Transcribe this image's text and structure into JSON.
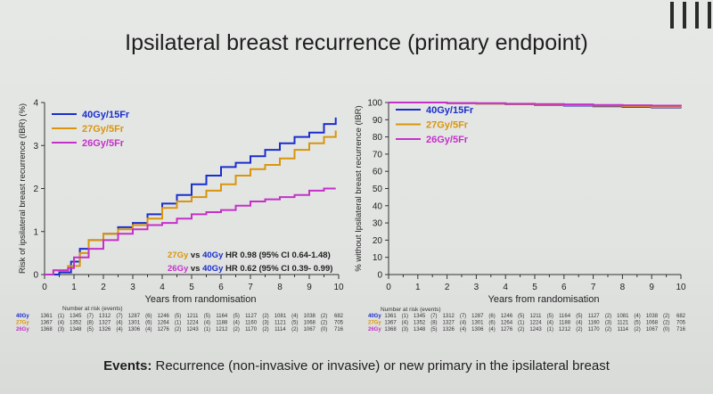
{
  "slide": {
    "title": "Ipsilateral breast recurrence (primary endpoint)",
    "footer_bold": "Events:",
    "footer_text": " Recurrence (non-invasive or invasive) or new primary in the ipsilateral breast"
  },
  "colors": {
    "40Gy": "#1a2ecc",
    "27Gy": "#d9950d",
    "26Gy": "#c431c9"
  },
  "chart_data": [
    {
      "type": "line",
      "title": "",
      "xlabel": "Years from randomisation",
      "ylabel": "Risk of ipsilateral breast recurrence (IBR) (%)",
      "xlim": [
        0,
        10
      ],
      "ylim": [
        0,
        4
      ],
      "xticks": [
        "0",
        "1",
        "2",
        "3",
        "4",
        "5",
        "6",
        "7",
        "8",
        "9",
        "10"
      ],
      "yticks": [
        "0",
        "1",
        "2",
        "3",
        "4"
      ],
      "legend_position": "top-left",
      "series": [
        {
          "name": "40Gy/15Fr",
          "color": "#1a2ecc",
          "x": [
            0,
            0.5,
            0.9,
            1.2,
            1.5,
            2.0,
            2.5,
            3.0,
            3.5,
            4.0,
            4.5,
            5.0,
            5.5,
            6.0,
            6.5,
            7.0,
            7.5,
            8.0,
            8.5,
            9.0,
            9.5,
            9.9
          ],
          "y": [
            0,
            0.05,
            0.3,
            0.6,
            0.8,
            0.95,
            1.1,
            1.2,
            1.4,
            1.65,
            1.85,
            2.1,
            2.3,
            2.5,
            2.6,
            2.75,
            2.9,
            3.05,
            3.2,
            3.3,
            3.5,
            3.65
          ]
        },
        {
          "name": "27Gy/5Fr",
          "color": "#d9950d",
          "x": [
            0,
            0.3,
            0.8,
            1.2,
            1.5,
            2.0,
            2.5,
            3.0,
            3.5,
            4.0,
            4.5,
            5.0,
            5.5,
            6.0,
            6.5,
            7.0,
            7.5,
            8.0,
            8.5,
            9.0,
            9.5,
            9.9
          ],
          "y": [
            0,
            0.1,
            0.2,
            0.5,
            0.8,
            0.95,
            1.05,
            1.15,
            1.3,
            1.55,
            1.7,
            1.8,
            1.95,
            2.1,
            2.3,
            2.45,
            2.55,
            2.7,
            2.9,
            3.05,
            3.2,
            3.35
          ]
        },
        {
          "name": "26Gy/5Fr",
          "color": "#c431c9",
          "x": [
            0,
            0.3,
            0.8,
            1.0,
            1.5,
            2.0,
            2.5,
            3.0,
            3.5,
            4.0,
            4.5,
            5.0,
            5.5,
            6.0,
            6.5,
            7.0,
            7.5,
            8.0,
            8.5,
            9.0,
            9.5,
            9.9
          ],
          "y": [
            0,
            0.1,
            0.15,
            0.4,
            0.6,
            0.8,
            0.95,
            1.05,
            1.15,
            1.2,
            1.3,
            1.4,
            1.45,
            1.5,
            1.6,
            1.7,
            1.75,
            1.8,
            1.85,
            1.95,
            2.0,
            2.0
          ]
        }
      ],
      "annotations": [
        {
          "group": "27Gy",
          "text": " vs ",
          "ref": "40Gy",
          "stats": " HR 0.98 (95% CI 0.64-1.48)"
        },
        {
          "group": "26Gy",
          "text": " vs ",
          "ref": "40Gy",
          "stats": " HR 0.62 (95% CI 0.39- 0.99)"
        }
      ],
      "risk_table": {
        "header": "Number at risk (events)",
        "rows": [
          {
            "label": "40Gy",
            "cells": [
              "1361",
              "(1)",
              "1345",
              "(7)",
              "1312",
              "(7)",
              "1287",
              "(6)",
              "1246",
              "(5)",
              "1211",
              "(5)",
              "1164",
              "(5)",
              "1127",
              "(2)",
              "1081",
              "(4)",
              "1038",
              "(2)",
              "682"
            ]
          },
          {
            "label": "27Gy",
            "cells": [
              "1367",
              "(4)",
              "1352",
              "(8)",
              "1327",
              "(4)",
              "1301",
              "(6)",
              "1264",
              "(1)",
              "1224",
              "(4)",
              "1188",
              "(4)",
              "1160",
              "(3)",
              "1121",
              "(5)",
              "1068",
              "(2)",
              "705"
            ]
          },
          {
            "label": "26Gy",
            "cells": [
              "1368",
              "(3)",
              "1348",
              "(5)",
              "1326",
              "(4)",
              "1306",
              "(4)",
              "1276",
              "(2)",
              "1243",
              "(1)",
              "1212",
              "(2)",
              "1170",
              "(2)",
              "1114",
              "(2)",
              "1067",
              "(0)",
              "716"
            ]
          }
        ]
      }
    },
    {
      "type": "line",
      "title": "",
      "xlabel": "Years from randomisation",
      "ylabel": "% without Ipsilateral breast recurrence (IBR)",
      "xlim": [
        0,
        10
      ],
      "ylim": [
        0,
        100
      ],
      "xticks": [
        "0",
        "1",
        "2",
        "3",
        "4",
        "5",
        "6",
        "7",
        "8",
        "9",
        "10"
      ],
      "yticks": [
        "0",
        "10",
        "20",
        "30",
        "40",
        "50",
        "60",
        "70",
        "80",
        "90",
        "100"
      ],
      "legend_position": "top-left",
      "series": [
        {
          "name": "40Gy/15Fr",
          "color": "#1a2ecc",
          "x": [
            0,
            2,
            3,
            4,
            5,
            6,
            7,
            8,
            9,
            10
          ],
          "y": [
            100,
            99.6,
            99.4,
            99,
            98.6,
            98.2,
            97.8,
            97.4,
            97,
            96.8
          ]
        },
        {
          "name": "27Gy/5Fr",
          "color": "#d9950d",
          "x": [
            0,
            2,
            3,
            4,
            5,
            6,
            7,
            8,
            9,
            10
          ],
          "y": [
            100,
            99.6,
            99.4,
            99.1,
            98.8,
            98.5,
            98.2,
            97.8,
            97.3,
            97.1
          ]
        },
        {
          "name": "26Gy/5Fr",
          "color": "#c431c9",
          "x": [
            0,
            2,
            3,
            4,
            5,
            6,
            7,
            8,
            9,
            10
          ],
          "y": [
            100,
            99.7,
            99.6,
            99.3,
            99.1,
            98.9,
            98.6,
            98.4,
            98.2,
            98.0
          ]
        }
      ],
      "risk_table": {
        "header": "Number at risk (events)",
        "rows": [
          {
            "label": "40Gy",
            "cells": [
              "1361",
              "(1)",
              "1345",
              "(7)",
              "1312",
              "(7)",
              "1287",
              "(6)",
              "1246",
              "(5)",
              "1211",
              "(5)",
              "1164",
              "(5)",
              "1127",
              "(2)",
              "1081",
              "(4)",
              "1038",
              "(2)",
              "682"
            ]
          },
          {
            "label": "27Gy",
            "cells": [
              "1367",
              "(4)",
              "1352",
              "(8)",
              "1327",
              "(4)",
              "1301",
              "(6)",
              "1264",
              "(1)",
              "1224",
              "(4)",
              "1188",
              "(4)",
              "1160",
              "(3)",
              "1121",
              "(5)",
              "1068",
              "(2)",
              "705"
            ]
          },
          {
            "label": "26Gy",
            "cells": [
              "1368",
              "(3)",
              "1348",
              "(5)",
              "1326",
              "(4)",
              "1306",
              "(4)",
              "1276",
              "(2)",
              "1243",
              "(1)",
              "1212",
              "(2)",
              "1170",
              "(2)",
              "1114",
              "(2)",
              "1067",
              "(0)",
              "716"
            ]
          }
        ]
      }
    }
  ]
}
